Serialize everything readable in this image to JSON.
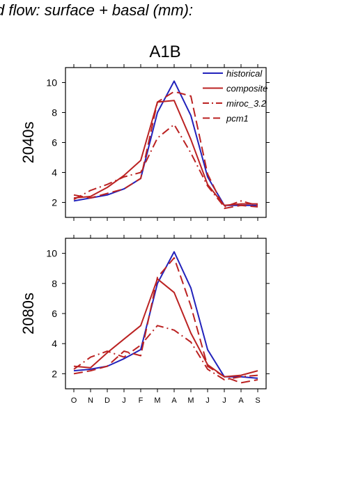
{
  "page_title": "d flow: surface + basal (mm):",
  "scenario_title": "A1B",
  "colors": {
    "historical": "#2222bb",
    "model": "#bb2222",
    "axis": "#000000"
  },
  "chart_data": [
    {
      "type": "line",
      "title": "A1B",
      "ylabel": "2040s",
      "xlabel": "",
      "categories": [
        "O",
        "N",
        "D",
        "J",
        "F",
        "M",
        "A",
        "M",
        "J",
        "J",
        "A",
        "S"
      ],
      "ylim": [
        1,
        11
      ],
      "yticks": [
        2,
        4,
        6,
        8,
        10
      ],
      "legend": "top-right",
      "series": [
        {
          "name": "historical",
          "style": "solid",
          "values": [
            2.1,
            2.3,
            2.5,
            2.9,
            3.6,
            8.0,
            10.1,
            7.8,
            3.7,
            1.8,
            1.8,
            1.8
          ]
        },
        {
          "name": "composite",
          "style": "solid",
          "values": [
            2.3,
            2.4,
            3.0,
            3.8,
            4.8,
            8.7,
            8.8,
            6.2,
            3.2,
            1.8,
            1.9,
            1.9
          ]
        },
        {
          "name": "miroc_3.2",
          "style": "dashdot",
          "values": [
            2.2,
            2.8,
            3.2,
            3.7,
            4.0,
            6.3,
            7.2,
            5.3,
            3.1,
            1.7,
            2.1,
            1.8
          ]
        },
        {
          "name": "pcm1",
          "style": "dashed",
          "values": [
            2.5,
            2.3,
            2.6,
            2.9,
            3.6,
            8.7,
            9.4,
            9.1,
            3.9,
            1.6,
            1.8,
            1.7
          ]
        }
      ]
    },
    {
      "type": "line",
      "title": "",
      "ylabel": "2080s",
      "xlabel": "",
      "categories": [
        "O",
        "N",
        "D",
        "J",
        "F",
        "M",
        "A",
        "M",
        "J",
        "J",
        "A",
        "S"
      ],
      "ylim": [
        1,
        11
      ],
      "yticks": [
        2,
        4,
        6,
        8,
        10
      ],
      "legend": "",
      "series": [
        {
          "name": "historical",
          "style": "solid",
          "values": [
            2.2,
            2.3,
            2.5,
            3.0,
            3.6,
            8.0,
            10.1,
            7.7,
            3.6,
            1.8,
            1.8,
            1.7
          ]
        },
        {
          "name": "composite",
          "style": "solid",
          "values": [
            2.5,
            2.4,
            3.4,
            4.3,
            5.2,
            8.3,
            7.4,
            4.7,
            2.6,
            1.8,
            1.9,
            2.2
          ]
        },
        {
          "name": "miroc_3.2",
          "style": "dashdot",
          "values": [
            2.3,
            3.1,
            3.5,
            3.1,
            3.9,
            5.2,
            4.9,
            4.1,
            2.3,
            1.6,
            1.8,
            1.9
          ]
        },
        {
          "name": "pcm1",
          "style": "dashed",
          "values": [
            2.0,
            2.2,
            2.5,
            3.5,
            3.2,
            8.4,
            9.7,
            6.5,
            2.5,
            1.8,
            1.4,
            1.6
          ]
        }
      ]
    }
  ]
}
